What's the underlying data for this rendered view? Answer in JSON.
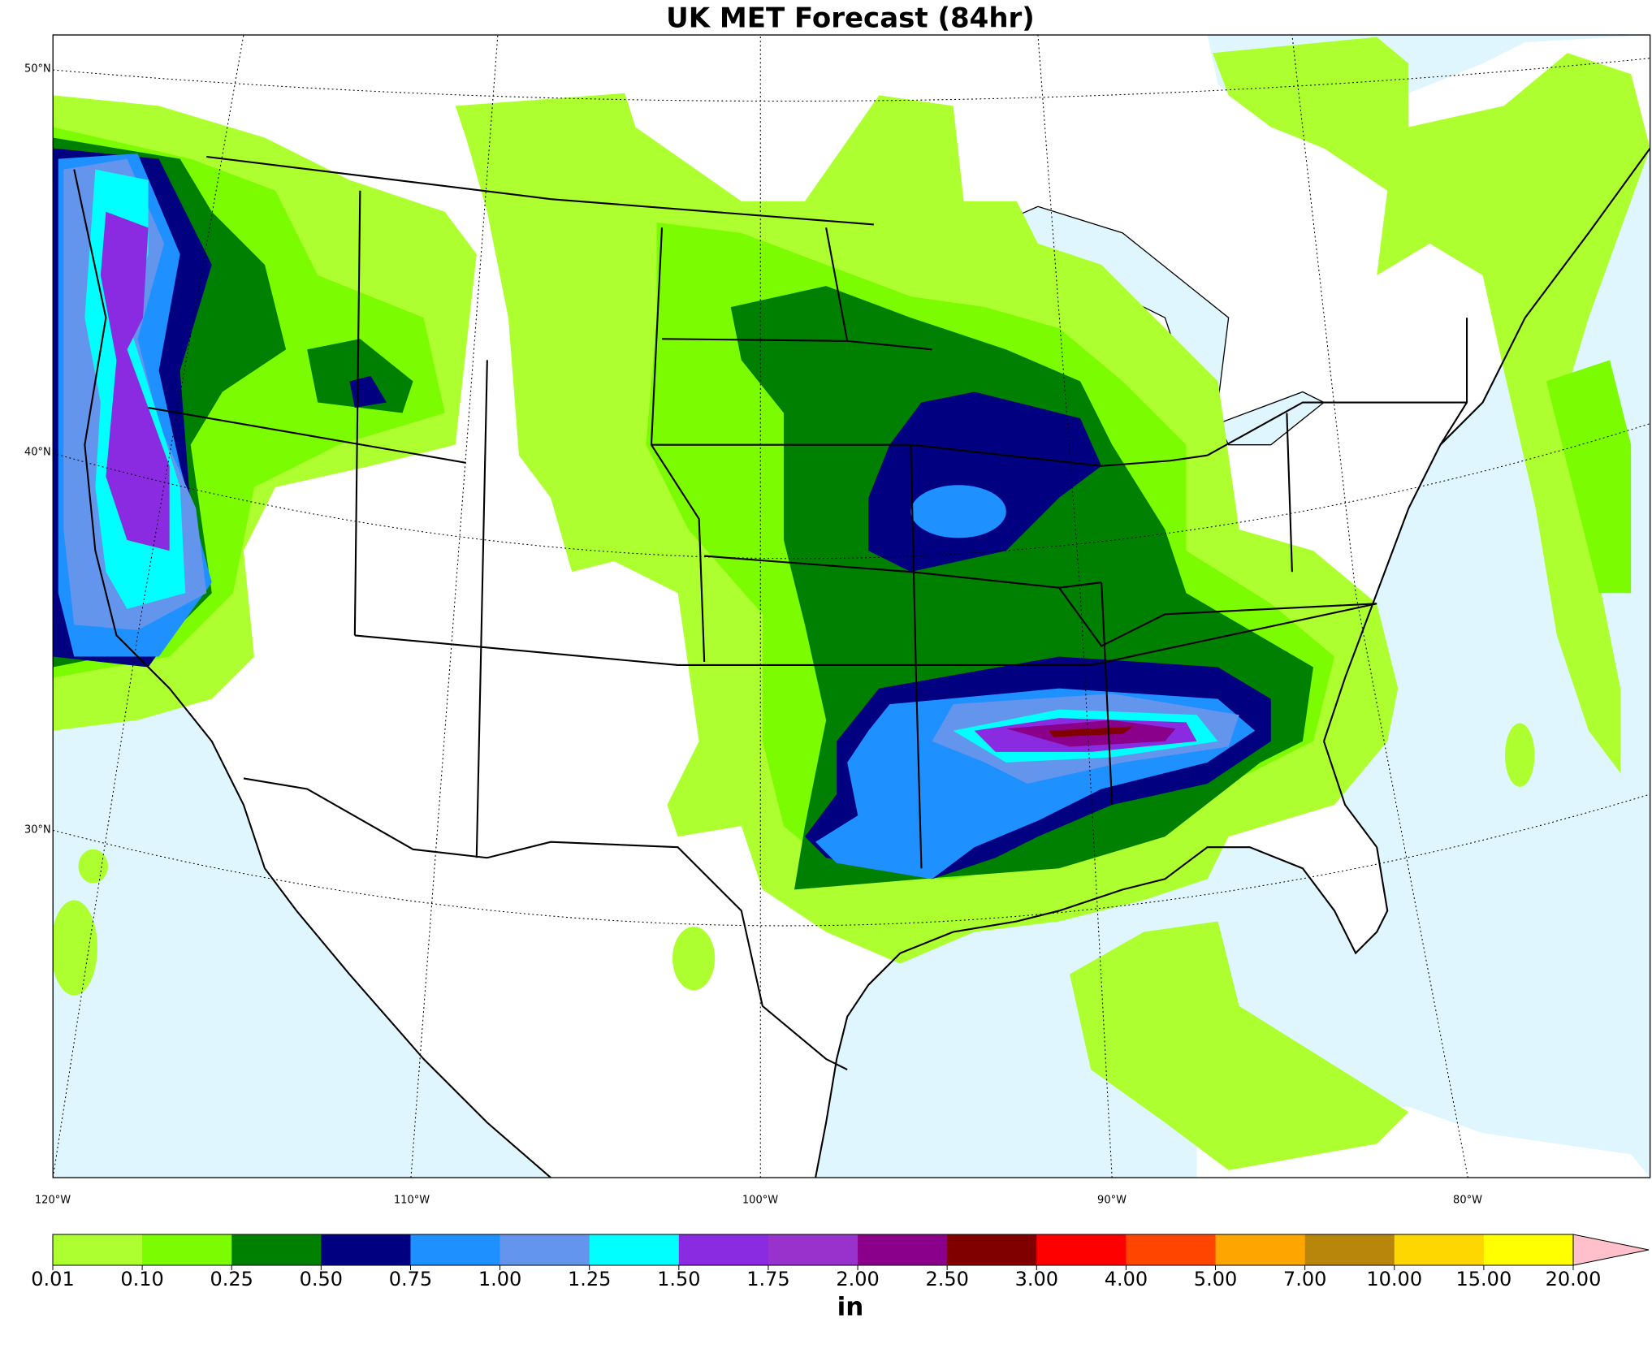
{
  "header": {
    "title": "UK MET Forecast (84hr)"
  },
  "map": {
    "lat_labels": [
      "50°N",
      "40°N",
      "30°N"
    ],
    "lon_labels": [
      "120°W",
      "110°W",
      "100°W",
      "90°W",
      "80°W"
    ]
  },
  "colorbar": {
    "levels": [
      0.01,
      {
        "value": 0.1,
        "label": "0.10"
      },
      {
        "value": 0.25,
        "label": "0.25"
      },
      {
        "value": 0.5,
        "label": "0.50"
      },
      {
        "value": 0.75,
        "label": "0.75"
      },
      {
        "value": 1,
        "label": "1.00"
      },
      {
        "value": 1.25,
        "label": "1.25"
      },
      {
        "value": 1.5,
        "label": "1.50"
      },
      {
        "value": 1.75,
        "label": "1.75"
      },
      {
        "value": 2,
        "label": "2.00"
      },
      {
        "value": 2.5,
        "label": "2.50"
      },
      {
        "value": 3,
        "label": "3.00"
      },
      {
        "value": 4,
        "label": "4.00"
      },
      {
        "value": 5,
        "label": "5.00"
      },
      {
        "value": 7,
        "label": "7.00"
      },
      {
        "value": 10,
        "label": "10.00"
      },
      {
        "value": 15,
        "label": "15.00"
      },
      {
        "value": 20,
        "label": "20.00"
      }
    ],
    "colors": [
      "#adff2f",
      "#7cfc00",
      "#008000",
      "#000080",
      "#1e90ff",
      "#6495ed",
      "#00ffff",
      "#8a2be2",
      "#9932cc",
      "#8b008b",
      "#800000",
      "#ff0000",
      "#ff4500",
      "#ffa500",
      "#b8860b",
      "#ffd700",
      "#ffff00"
    ],
    "extend_color": "#ffc0cb",
    "unit": "in"
  }
}
